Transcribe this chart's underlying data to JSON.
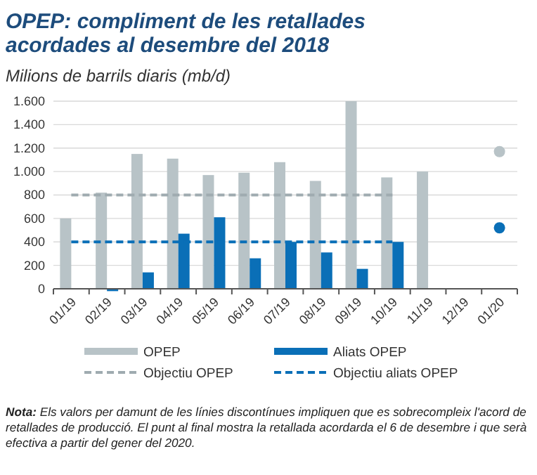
{
  "chart_data": {
    "type": "bar",
    "title": "OPEP: compliment de les retallades acordades al desembre del 2018",
    "subtitle": "Milions de barrils diaris (mb/d)",
    "categories": [
      "01/19",
      "02/19",
      "03/19",
      "04/19",
      "05/19",
      "06/19",
      "07/19",
      "08/19",
      "09/19",
      "10/19",
      "11/19",
      "12/19",
      "01/20"
    ],
    "series": [
      {
        "name": "OPEP",
        "color": "#b8c3c7",
        "values": [
          600,
          820,
          1150,
          1110,
          970,
          990,
          1080,
          920,
          1600,
          950,
          1000,
          null,
          null
        ]
      },
      {
        "name": "Aliats OPEP",
        "color": "#0a6fb7",
        "values": [
          0,
          -20,
          140,
          470,
          610,
          260,
          400,
          310,
          170,
          400,
          null,
          null,
          null
        ]
      },
      {
        "name": "Objectiu OPEP",
        "type": "line",
        "line_style": "dashed",
        "color": "#9fabb0",
        "values": [
          800,
          800,
          800,
          800,
          800,
          800,
          800,
          800,
          800,
          800,
          null,
          null,
          null
        ]
      },
      {
        "name": "Objectiu aliats OPEP",
        "type": "line",
        "line_style": "dashed",
        "color": "#0a6fb7",
        "values": [
          400,
          400,
          400,
          400,
          400,
          400,
          400,
          400,
          400,
          400,
          null,
          null,
          null
        ]
      },
      {
        "type": "scatter",
        "marker": "circle",
        "color": "#b8c3c7",
        "x": [
          "01/20"
        ],
        "values": [
          1170
        ]
      },
      {
        "type": "scatter",
        "marker": "circle",
        "color": "#0a6fb7",
        "x": [
          "01/20"
        ],
        "values": [
          520
        ]
      }
    ],
    "ylim": [
      -30,
      1600
    ],
    "yticks": [
      0,
      200,
      400,
      600,
      800,
      {
        "value": 1000,
        "label": "1.000"
      },
      {
        "value": 1200,
        "label": "1.200"
      },
      {
        "value": 1400,
        "label": "1.400"
      },
      {
        "value": 1600,
        "label": "1.600"
      }
    ],
    "grid": "y",
    "legend": "bottom",
    "annotations": [
      "Nota: Els valors per damunt de les línies discontínues impliquen que es sobrecompleix l'acord de retallades de producció. El punt al final mostra la retallada acordarda el 6 de desembre i que serà efectiva a partir del gener del 2020."
    ]
  }
}
